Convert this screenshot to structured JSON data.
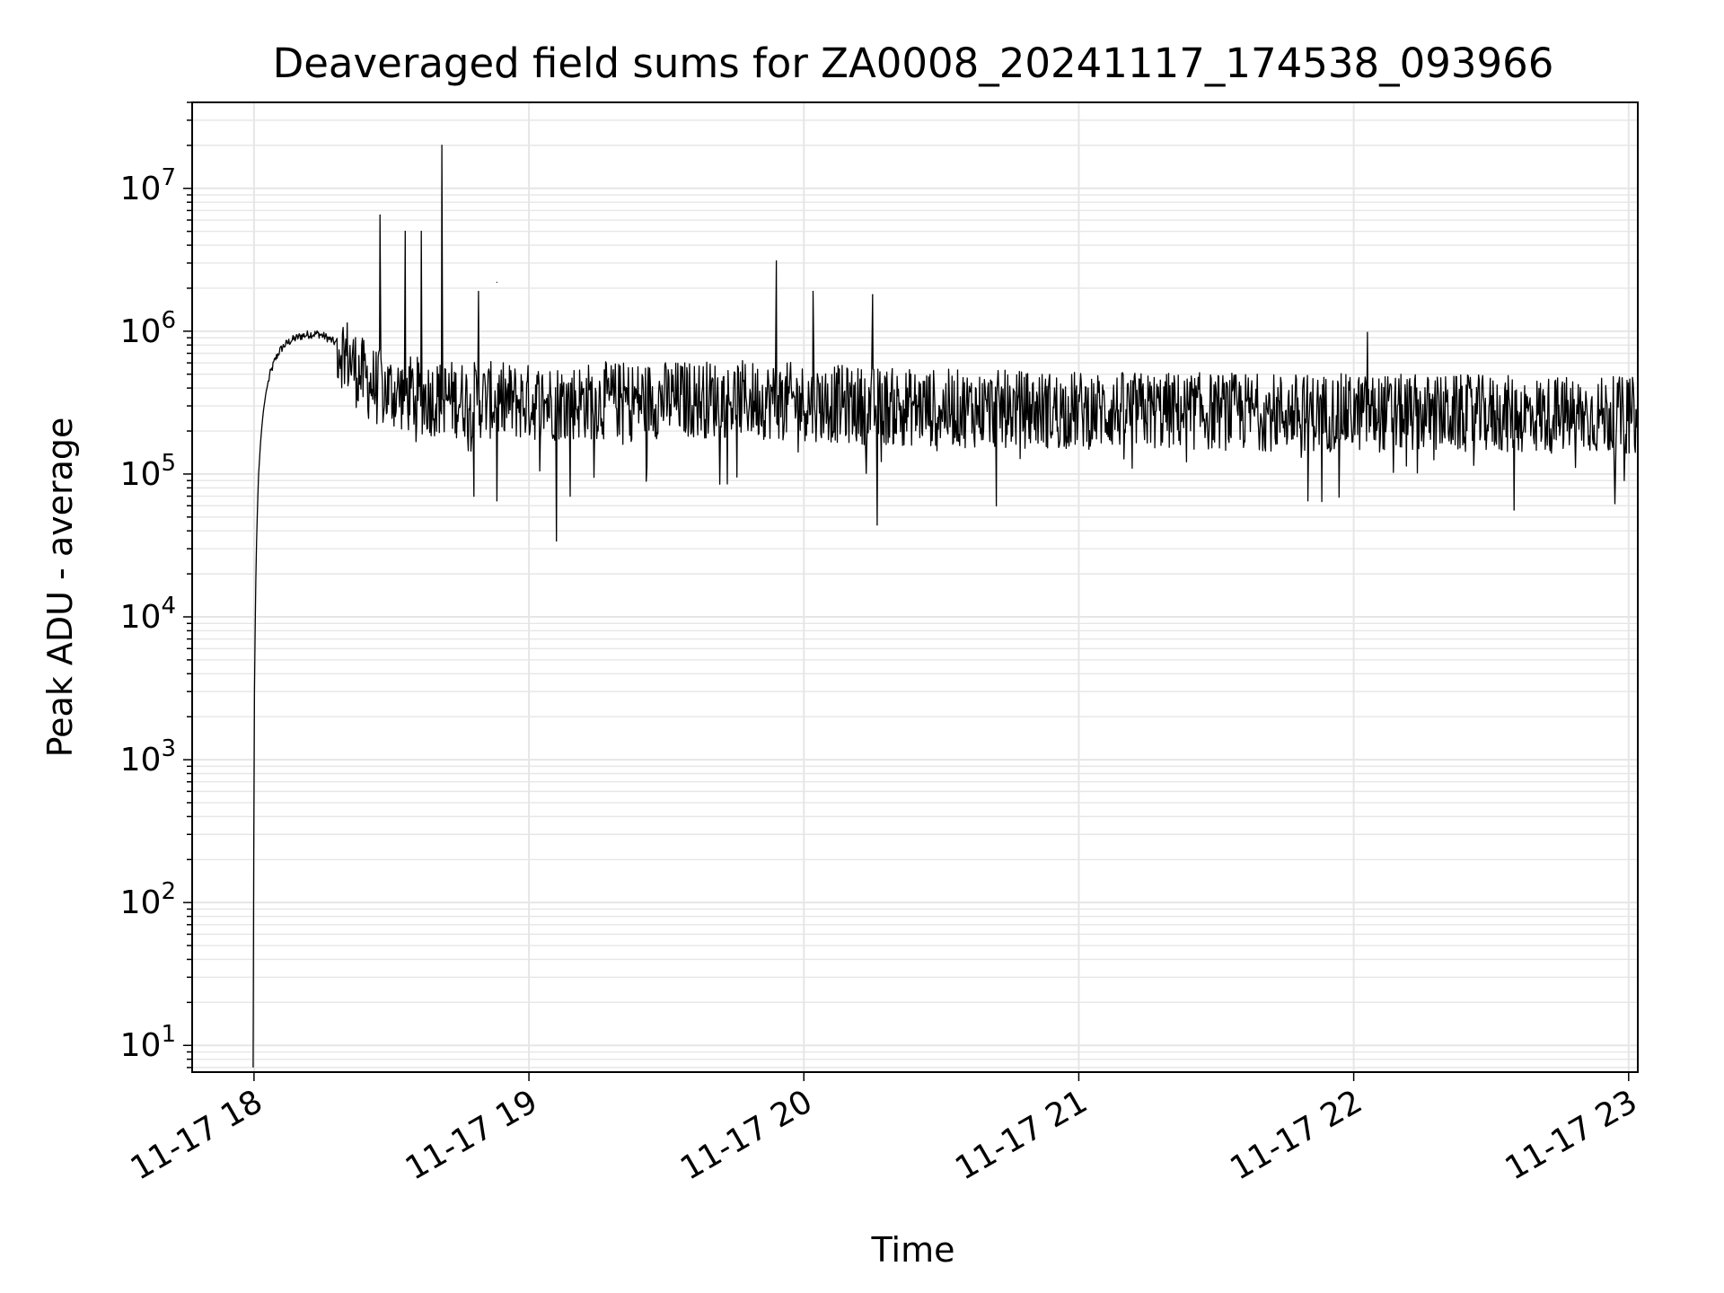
{
  "chart_data": {
    "type": "line",
    "title": "Deaveraged field sums for ZA0008_20241117_174538_093966",
    "xlabel": "Time",
    "ylabel": "Peak ADU - average",
    "x_scale": "time",
    "y_scale": "log",
    "xlim": [
      "2024-11-17 17:46:30",
      "2024-11-17 23:02:00"
    ],
    "ylim": [
      6.5,
      40000000
    ],
    "grid": true,
    "line_color": "#000000",
    "grid_color": "#e6e6e6",
    "x_ticks": [
      {
        "value": "2024-11-17 18:00",
        "label": "11-17 18"
      },
      {
        "value": "2024-11-17 19:00",
        "label": "11-17 19"
      },
      {
        "value": "2024-11-17 20:00",
        "label": "11-17 20"
      },
      {
        "value": "2024-11-17 21:00",
        "label": "11-17 21"
      },
      {
        "value": "2024-11-17 22:00",
        "label": "11-17 22"
      },
      {
        "value": "2024-11-17 23:00",
        "label": "11-17 23"
      }
    ],
    "y_ticks": [
      {
        "value": 10,
        "base": "10",
        "exp": "1"
      },
      {
        "value": 100,
        "base": "10",
        "exp": "2"
      },
      {
        "value": 1000,
        "base": "10",
        "exp": "3"
      },
      {
        "value": 10000,
        "base": "10",
        "exp": "4"
      },
      {
        "value": 100000,
        "base": "10",
        "exp": "5"
      },
      {
        "value": 1000000,
        "base": "10",
        "exp": "6"
      },
      {
        "value": 10000000,
        "base": "10",
        "exp": "7"
      }
    ],
    "series": [
      {
        "x": [
          "2024-11-17 17:59:48",
          "2024-11-17 18:00:00",
          "2024-11-17 18:00:06",
          "2024-11-17 18:00:18",
          "2024-11-17 18:00:36",
          "2024-11-17 18:01:00",
          "2024-11-17 18:01:30",
          "2024-11-17 18:02:00",
          "2024-11-17 18:02:40",
          "2024-11-17 18:03:30",
          "2024-11-17 18:04:30",
          "2024-11-17 18:05:30",
          "2024-11-17 18:06:30",
          "2024-11-17 18:08:00",
          "2024-11-17 18:10:00",
          "2024-11-17 18:12:00",
          "2024-11-17 18:14:00",
          "2024-11-17 18:16:00",
          "2024-11-17 18:18:00",
          "2024-11-17 18:20:00",
          "2024-11-17 18:22:00",
          "2024-11-17 18:24:00",
          "2024-11-17 18:26:00",
          "2024-11-17 18:28:00",
          "2024-11-17 18:30:00",
          "2024-11-17 18:32:00",
          "2024-11-17 18:34:00",
          "2024-11-17 18:36:00",
          "2024-11-17 18:38:00",
          "2024-11-17 18:40:00",
          "2024-11-17 18:42:00",
          "2024-11-17 18:44:00",
          "2024-11-17 18:46:00",
          "2024-11-17 18:48:00",
          "2024-11-17 18:50:00",
          "2024-11-17 18:52:00",
          "2024-11-17 18:54:00",
          "2024-11-17 18:56:00",
          "2024-11-17 18:58:00",
          "2024-11-17 19:00:00",
          "2024-11-17 19:05:00",
          "2024-11-17 19:10:00",
          "2024-11-17 19:15:00",
          "2024-11-17 19:20:00",
          "2024-11-17 19:25:00",
          "2024-11-17 19:30:00",
          "2024-11-17 19:35:00",
          "2024-11-17 19:40:00",
          "2024-11-17 19:45:00",
          "2024-11-17 19:50:00",
          "2024-11-17 19:55:00",
          "2024-11-17 20:00:00",
          "2024-11-17 20:10:00",
          "2024-11-17 20:20:00",
          "2024-11-17 20:30:00",
          "2024-11-17 20:40:00",
          "2024-11-17 20:50:00",
          "2024-11-17 21:00:00",
          "2024-11-17 21:10:00",
          "2024-11-17 21:20:00",
          "2024-11-17 21:30:00",
          "2024-11-17 21:40:00",
          "2024-11-17 21:50:00",
          "2024-11-17 22:00:00",
          "2024-11-17 22:10:00",
          "2024-11-17 22:20:00",
          "2024-11-17 22:30:00",
          "2024-11-17 22:40:00",
          "2024-11-17 22:50:00",
          "2024-11-17 23:02:00"
        ],
        "y": [
          7,
          700,
          3000,
          12000,
          40000,
          100000,
          180000,
          270000,
          380000,
          500000,
          620000,
          720000,
          790000,
          860000,
          920000,
          950000,
          960000,
          900000,
          820000,
          700000,
          560000,
          470000,
          420000,
          390000,
          380000,
          370000,
          360000,
          350000,
          345000,
          340000,
          338000,
          335000,
          333000,
          330000,
          328000,
          326000,
          324000,
          322000,
          320000,
          318000,
          320000,
          322000,
          325000,
          328000,
          330000,
          332000,
          334000,
          335000,
          333000,
          330000,
          325000,
          320000,
          305000,
          295000,
          290000,
          285000,
          282000,
          280000,
          278000,
          276000,
          274000,
          272000,
          270000,
          268000,
          266000,
          264000,
          262000,
          260000,
          258000,
          255000
        ]
      }
    ],
    "spikes": [
      {
        "x": "2024-11-17 18:27:30",
        "y": 6500000
      },
      {
        "x": "2024-11-17 18:33:00",
        "y": 5000000
      },
      {
        "x": "2024-11-17 18:36:30",
        "y": 5000000
      },
      {
        "x": "2024-11-17 18:41:00",
        "y": 20000000
      },
      {
        "x": "2024-11-17 18:49:00",
        "y": 1900000
      },
      {
        "x": "2024-11-17 18:53:00",
        "y": 2200000
      },
      {
        "x": "2024-11-17 19:54:00",
        "y": 3100000
      },
      {
        "x": "2024-11-17 20:02:00",
        "y": 1900000
      },
      {
        "x": "2024-11-17 20:15:00",
        "y": 1800000
      },
      {
        "x": "2024-11-17 22:03:00",
        "y": 980000
      }
    ],
    "dips": [
      {
        "x": "2024-11-17 18:48:00",
        "y": 70000
      },
      {
        "x": "2024-11-17 18:53:00",
        "y": 65000
      },
      {
        "x": "2024-11-17 19:06:00",
        "y": 34000
      },
      {
        "x": "2024-11-17 19:09:00",
        "y": 70000
      },
      {
        "x": "2024-11-17 20:16:00",
        "y": 44000
      },
      {
        "x": "2024-11-17 20:42:00",
        "y": 60000
      },
      {
        "x": "2024-11-17 21:50:00",
        "y": 65000
      },
      {
        "x": "2024-11-17 22:35:00",
        "y": 56000
      },
      {
        "x": "2024-11-17 22:57:00",
        "y": 62000
      }
    ]
  }
}
